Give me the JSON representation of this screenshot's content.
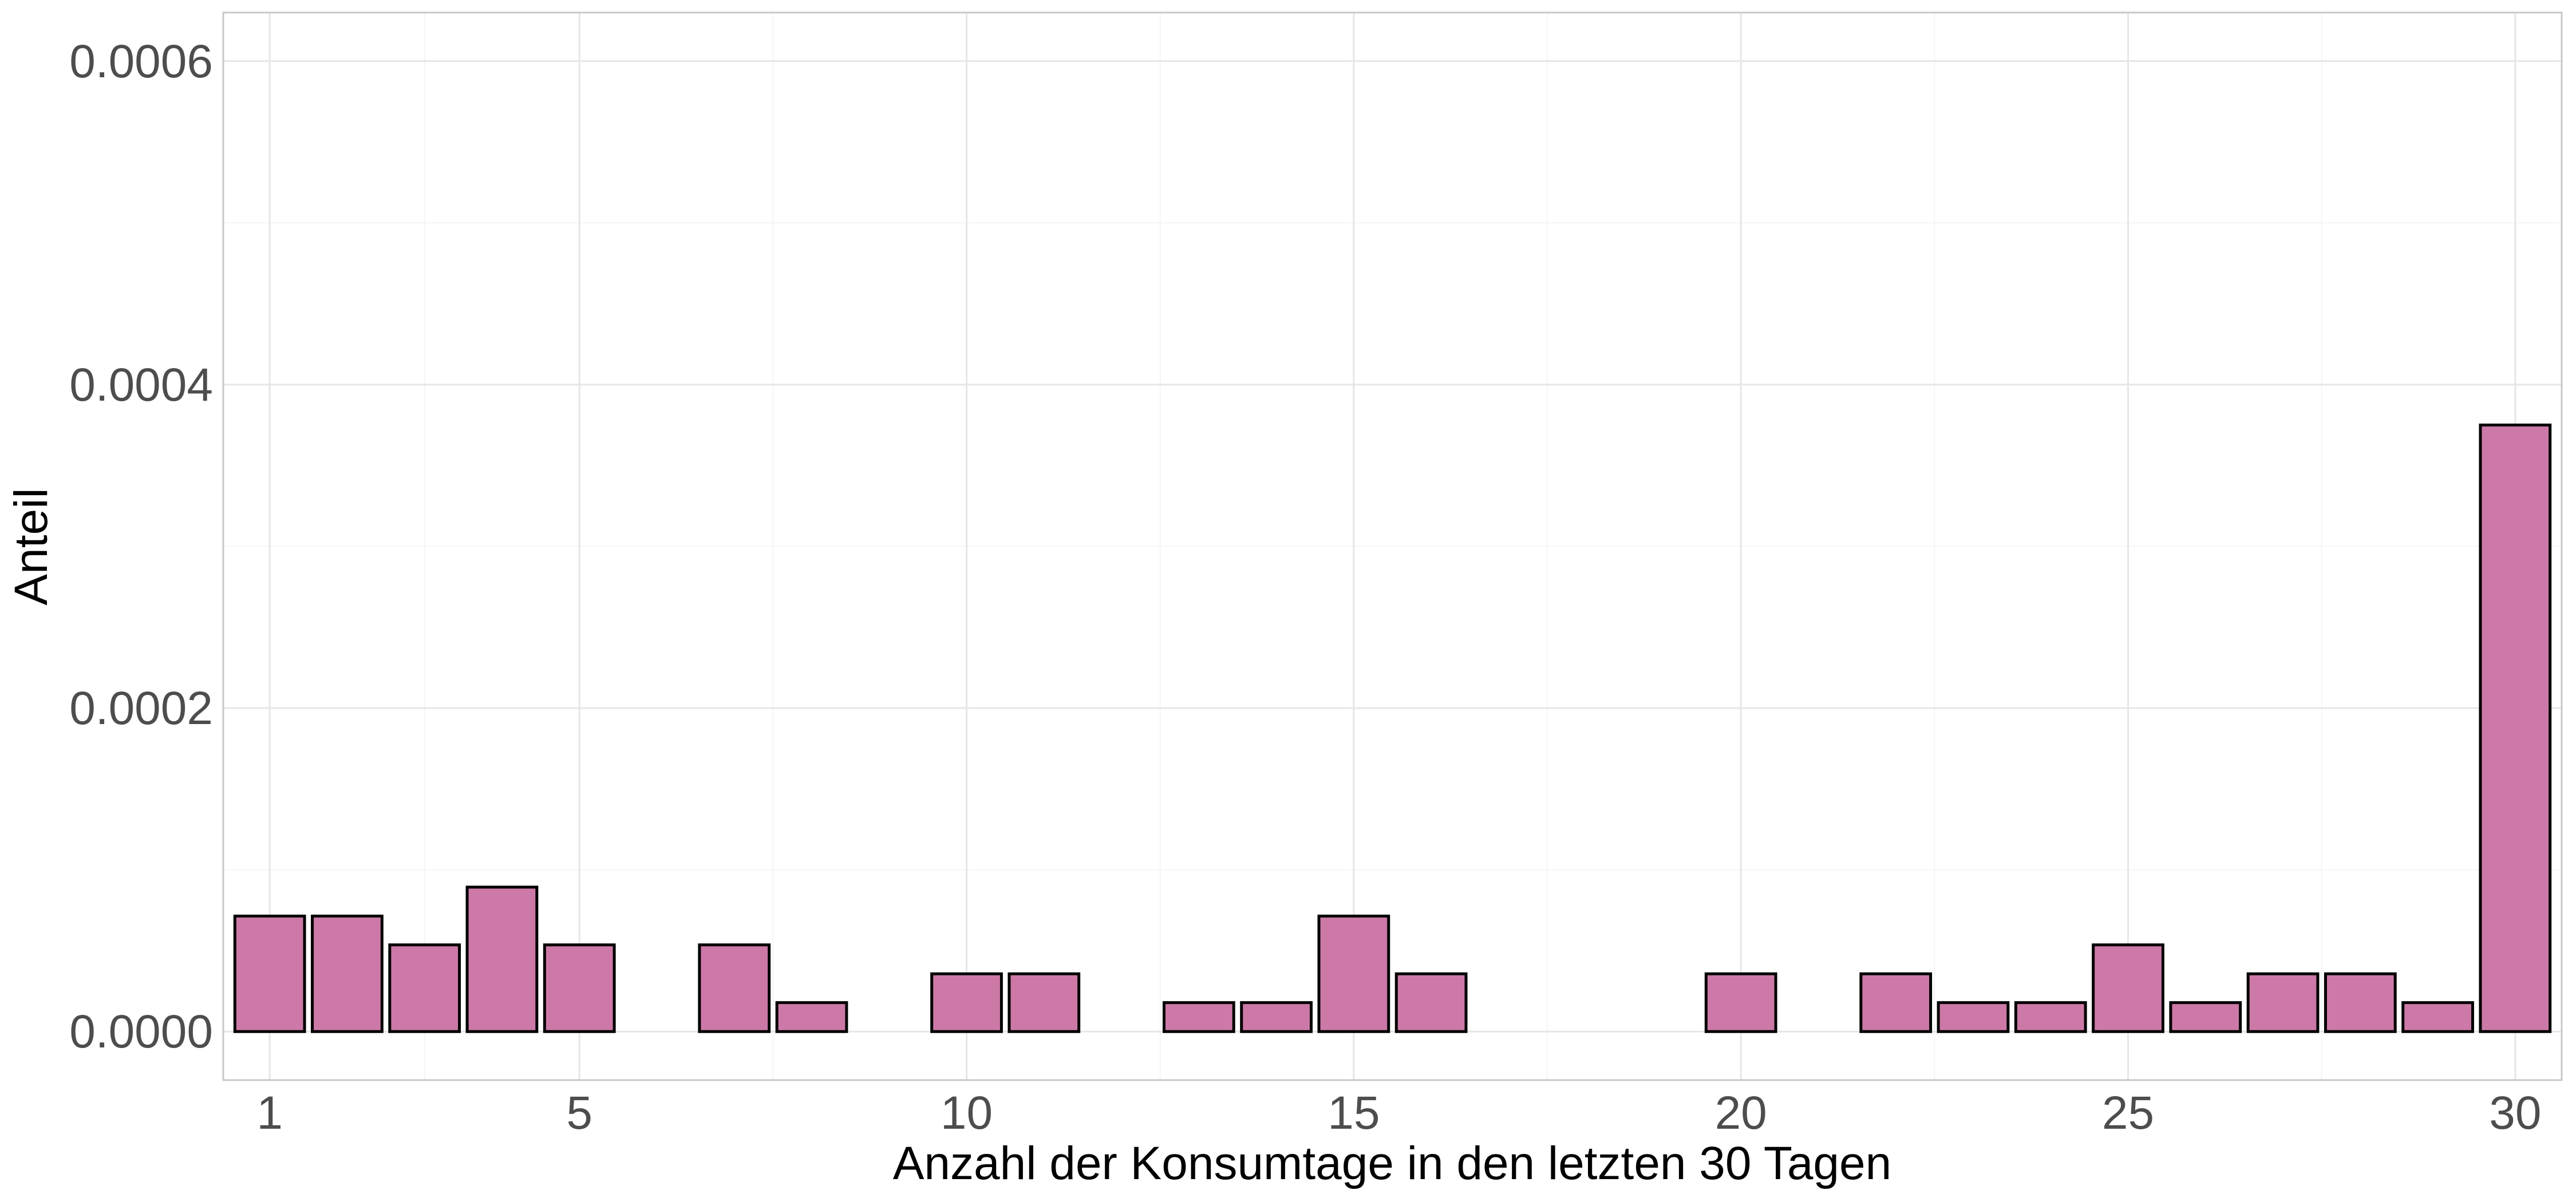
{
  "chart_data": {
    "type": "bar",
    "title": "",
    "xlabel": "Anzahl der Konsumtage in den letzten 30 Tagen",
    "ylabel": "Anteil",
    "x": [
      1,
      2,
      3,
      4,
      5,
      7,
      8,
      10,
      11,
      13,
      14,
      15,
      16,
      20,
      22,
      23,
      24,
      25,
      26,
      27,
      28,
      29,
      30
    ],
    "values": [
      7.14e-05,
      7.14e-05,
      5.36e-05,
      8.93e-05,
      5.36e-05,
      5.36e-05,
      1.79e-05,
      3.57e-05,
      3.57e-05,
      1.79e-05,
      1.79e-05,
      7.14e-05,
      3.57e-05,
      3.57e-05,
      3.57e-05,
      1.79e-05,
      1.79e-05,
      5.36e-05,
      1.79e-05,
      3.57e-05,
      3.57e-05,
      1.79e-05,
      0.000375
    ],
    "xlim": [
      0.4,
      30.6
    ],
    "ylim": [
      -3e-05,
      0.00063
    ],
    "xticks": [
      1,
      5,
      10,
      15,
      20,
      25,
      30
    ],
    "xtick_labels": [
      "1",
      "5",
      "10",
      "15",
      "20",
      "25",
      "30"
    ],
    "yticks": [
      0.0,
      0.0002,
      0.0004,
      0.0006
    ],
    "ytick_labels": [
      "0.0000",
      "0.0002",
      "0.0004",
      "0.0006"
    ],
    "bar_color": "#CC79A7",
    "bar_outline_color": "#000000",
    "grid": true,
    "legend": false
  }
}
